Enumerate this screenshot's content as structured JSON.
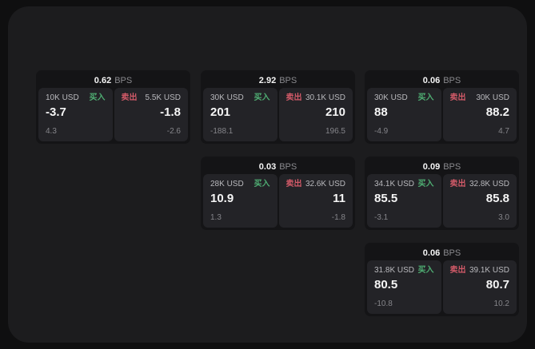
{
  "labels": {
    "buy": "买入",
    "sell": "卖出",
    "bps_unit": "BPS"
  },
  "colors": {
    "buy_green": "#4fae73",
    "sell_red": "#d25a68",
    "value_text": "#f5f5f5",
    "muted_text": "#85858a",
    "panel_bg": "#1c1c1e",
    "card_bg": "#141416",
    "subpanel_bg": "#232327"
  },
  "cards": [
    {
      "bps": "0.62",
      "buy": {
        "amount": "10K USD",
        "value": "-3.7",
        "sub": "4.3"
      },
      "sell": {
        "amount": "5.5K USD",
        "value": "-1.8",
        "sub": "-2.6"
      }
    },
    {
      "bps": "2.92",
      "buy": {
        "amount": "30K USD",
        "value": "201",
        "sub": "-188.1"
      },
      "sell": {
        "amount": "30.1K USD",
        "value": "210",
        "sub": "196.5"
      }
    },
    {
      "bps": "0.06",
      "buy": {
        "amount": "30K USD",
        "value": "88",
        "sub": "-4.9"
      },
      "sell": {
        "amount": "30K USD",
        "value": "88.2",
        "sub": "4.7"
      }
    },
    {
      "bps": "0.03",
      "buy": {
        "amount": "28K USD",
        "value": "10.9",
        "sub": "1.3"
      },
      "sell": {
        "amount": "32.6K USD",
        "value": "11",
        "sub": "-1.8"
      }
    },
    {
      "bps": "0.09",
      "buy": {
        "amount": "34.1K USD",
        "value": "85.5",
        "sub": "-3.1"
      },
      "sell": {
        "amount": "32.8K USD",
        "value": "85.8",
        "sub": "3.0"
      }
    },
    {
      "bps": "0.06",
      "buy": {
        "amount": "31.8K USD",
        "value": "80.5",
        "sub": "-10.8"
      },
      "sell": {
        "amount": "39.1K USD",
        "value": "80.7",
        "sub": "10.2"
      }
    }
  ]
}
